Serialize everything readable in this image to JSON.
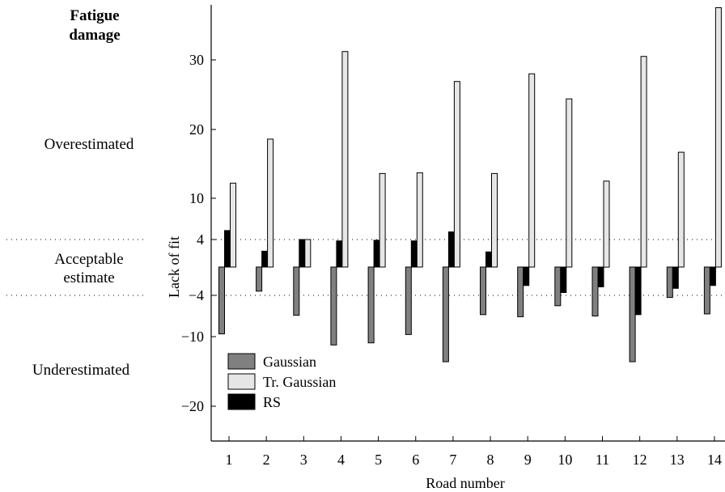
{
  "chart_data": {
    "type": "bar",
    "xlabel": "Road number",
    "ylabel": "Lack of fit",
    "categories": [
      "1",
      "2",
      "3",
      "4",
      "5",
      "6",
      "7",
      "8",
      "9",
      "10",
      "11",
      "12",
      "13",
      "14"
    ],
    "series": [
      {
        "name": "Gaussian",
        "color": "#808080",
        "values": [
          -9.6,
          -3.4,
          -6.9,
          -11.2,
          -10.9,
          -9.7,
          -13.6,
          -6.8,
          -7.1,
          -5.5,
          -7.0,
          -13.6,
          -4.3,
          -6.7
        ]
      },
      {
        "name": "Tr. Gaussian",
        "color": "#e6e6e6",
        "values": [
          12.2,
          18.6,
          4.0,
          31.2,
          13.6,
          13.7,
          26.9,
          13.6,
          28.0,
          24.4,
          12.5,
          30.5,
          16.7,
          37.5
        ]
      },
      {
        "name": "RS",
        "color": "#000000",
        "values": [
          5.3,
          2.3,
          4.0,
          3.8,
          3.9,
          3.8,
          5.1,
          2.2,
          -2.6,
          -3.6,
          -2.8,
          -6.8,
          -3.0,
          -2.6
        ]
      }
    ],
    "yticks": [
      -20,
      -10,
      -4,
      4,
      10,
      20,
      30
    ],
    "ylim": [
      -25,
      38
    ],
    "thresholds": [
      4,
      -4
    ],
    "grid": false,
    "legend_position": "lower-left"
  },
  "annotations": {
    "header_line1": "Fatigue",
    "header_line2": "damage",
    "over": "Overestimated",
    "acceptable_line1": "Acceptable",
    "acceptable_line2": "estimate",
    "under": "Underestimated"
  }
}
